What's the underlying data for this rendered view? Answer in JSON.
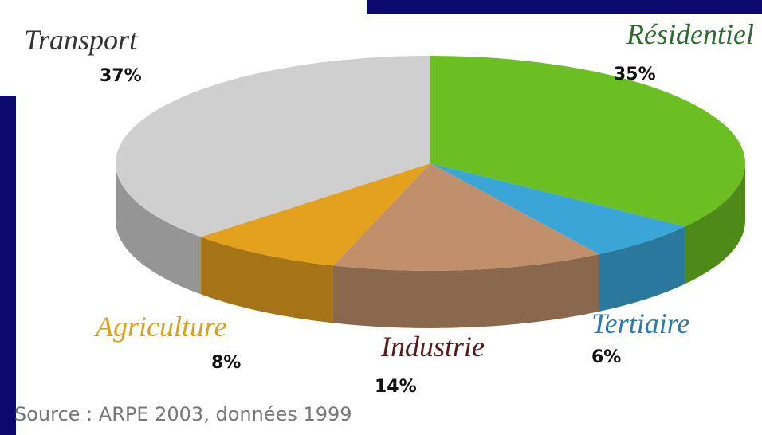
{
  "chart_data": {
    "type": "pie3d",
    "categories": [
      "Résidentiel",
      "Tertiaire",
      "Industrie",
      "Agriculture",
      "Transport"
    ],
    "values": [
      35,
      6,
      14,
      8,
      37
    ],
    "value_labels": [
      "35%",
      "6%",
      "14%",
      "8%",
      "37%"
    ],
    "colors": [
      "#6cbf22",
      "#3aa6d8",
      "#c0906c",
      "#e4a11e",
      "#cfcfcf"
    ],
    "label_colors": [
      "#2e6b2e",
      "#2a7ab0",
      "#5a1a1a",
      "#d9a020",
      "#333333"
    ],
    "source": "Source : ARPE 2003, données 1999"
  }
}
